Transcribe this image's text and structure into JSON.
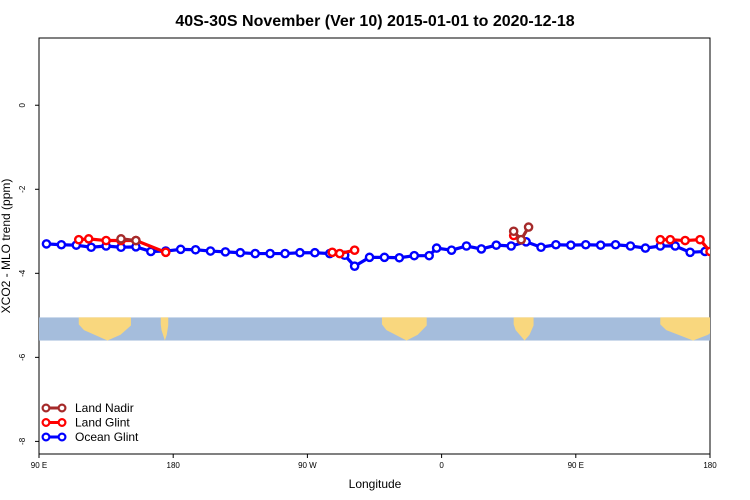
{
  "chart_data": {
    "type": "line",
    "title": "40S-30S November (Ver 10)   2015-01-01 to 2020-12-18",
    "xlabel": "Longitude",
    "ylabel": "XCO2 - MLO trend (ppm)",
    "xlim": [
      -90,
      180
    ],
    "ylim": [
      -8.3,
      1.6
    ],
    "x_ticks": [
      {
        "value": -90,
        "label": "90 E"
      },
      {
        "value": -36,
        "label": "180"
      },
      {
        "value": 18,
        "label": "90 W"
      },
      {
        "value": 72,
        "label": "0"
      },
      {
        "value": 126,
        "label": "90 E"
      },
      {
        "value": 180,
        "label": "180"
      }
    ],
    "y_ticks": [
      {
        "value": 0,
        "label": "0"
      },
      {
        "value": -2,
        "label": "-2"
      },
      {
        "value": -4,
        "label": "-4"
      },
      {
        "value": -6,
        "label": "-6"
      },
      {
        "value": -8,
        "label": "-8"
      }
    ],
    "map_band": {
      "y_top": -5.05,
      "y_bottom": -5.6,
      "ocean_color": "#a5bddc",
      "land_color": "#f9d77e"
    },
    "land_masses": [
      {
        "name": "australia-left",
        "x_start": -74,
        "x_end": -53
      },
      {
        "name": "new-zealand-left",
        "x_start": -41,
        "x_end": -38
      },
      {
        "name": "south-america",
        "x_start": 48,
        "x_end": 66
      },
      {
        "name": "africa",
        "x_start": 101,
        "x_end": 109
      },
      {
        "name": "australia-right",
        "x_start": 160,
        "x_end": 184
      }
    ],
    "series": [
      {
        "name": "Ocean Glint",
        "color": "#0000ff",
        "points": [
          [
            -87,
            -3.3
          ],
          [
            -81,
            -3.32
          ],
          [
            -75,
            -3.33
          ],
          [
            -69,
            -3.38
          ],
          [
            -63,
            -3.35
          ],
          [
            -57,
            -3.38
          ],
          [
            -51,
            -3.37
          ],
          [
            -45,
            -3.48
          ],
          [
            -39,
            -3.47
          ],
          [
            -33,
            -3.43
          ],
          [
            -27,
            -3.44
          ],
          [
            -21,
            -3.47
          ],
          [
            -15,
            -3.49
          ],
          [
            -9,
            -3.51
          ],
          [
            -3,
            -3.53
          ],
          [
            3,
            -3.53
          ],
          [
            9,
            -3.53
          ],
          [
            15,
            -3.51
          ],
          [
            21,
            -3.51
          ],
          [
            27,
            -3.53
          ],
          [
            33,
            -3.57
          ],
          [
            37,
            -3.83
          ],
          [
            43,
            -3.62
          ],
          [
            49,
            -3.62
          ],
          [
            55,
            -3.63
          ],
          [
            61,
            -3.58
          ],
          [
            67,
            -3.58
          ],
          [
            70,
            -3.4
          ],
          [
            76,
            -3.45
          ],
          [
            82,
            -3.35
          ],
          [
            88,
            -3.42
          ],
          [
            94,
            -3.33
          ],
          [
            100,
            -3.35
          ],
          [
            106,
            -3.25
          ],
          [
            112,
            -3.38
          ],
          [
            118,
            -3.32
          ],
          [
            124,
            -3.33
          ],
          [
            130,
            -3.32
          ],
          [
            136,
            -3.33
          ],
          [
            142,
            -3.32
          ],
          [
            148,
            -3.35
          ],
          [
            154,
            -3.4
          ],
          [
            160,
            -3.35
          ],
          [
            166,
            -3.35
          ],
          [
            172,
            -3.5
          ],
          [
            178,
            -3.48
          ]
        ]
      },
      {
        "name": "Land Glint",
        "color": "#ff0000",
        "segments": [
          [
            [
              -74,
              -3.2
            ],
            [
              -70,
              -3.18
            ],
            [
              -63,
              -3.22
            ],
            [
              -57,
              -3.22
            ],
            [
              -51,
              -3.22
            ],
            [
              -39,
              -3.5
            ]
          ],
          [
            [
              28,
              -3.5
            ],
            [
              31,
              -3.53
            ],
            [
              37,
              -3.45
            ]
          ],
          [
            [
              101,
              -3.1
            ],
            [
              104,
              -3.2
            ]
          ],
          [
            [
              160,
              -3.2
            ],
            [
              164,
              -3.2
            ],
            [
              170,
              -3.22
            ],
            [
              176,
              -3.2
            ],
            [
              180,
              -3.48
            ]
          ]
        ]
      },
      {
        "name": "Land Nadir",
        "color": "#a52a2a",
        "segments": [
          [
            [
              -57,
              -3.18
            ],
            [
              -51,
              -3.22
            ]
          ],
          [
            [
              101,
              -3.0
            ],
            [
              104,
              -3.2
            ],
            [
              107,
              -2.9
            ]
          ]
        ]
      }
    ],
    "legend": {
      "position": "bottom-left",
      "entries": [
        "Land Nadir",
        "Land Glint",
        "Ocean Glint"
      ]
    }
  }
}
